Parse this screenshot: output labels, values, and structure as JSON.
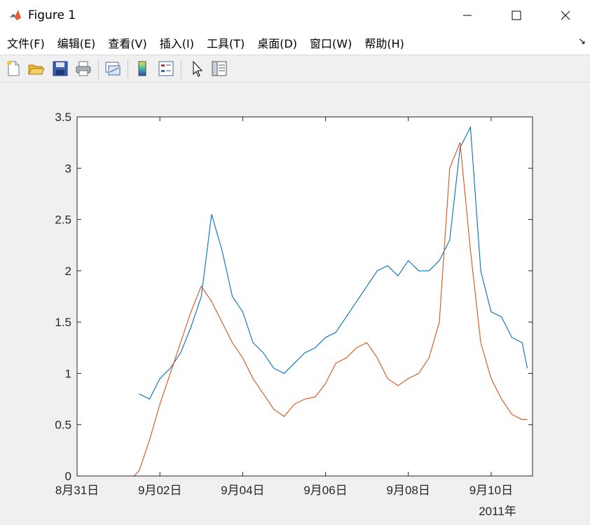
{
  "window": {
    "title": "Figure 1"
  },
  "menu": {
    "items": [
      "文件(F)",
      "编辑(E)",
      "查看(V)",
      "插入(I)",
      "工具(T)",
      "桌面(D)",
      "窗口(W)",
      "帮助(H)"
    ]
  },
  "toolbar": {
    "icons": [
      "new-figure-icon",
      "open-file-icon",
      "save-icon",
      "print-icon",
      "link-plot-icon",
      "colorbar-icon",
      "legend-icon",
      "edit-plot-arrow-icon",
      "property-inspector-icon"
    ]
  },
  "colors": {
    "series1": "#0072bd",
    "series2": "#d95319",
    "axis": "#262626"
  },
  "chart_data": {
    "type": "line",
    "title": "",
    "xlabel": "",
    "ylabel": "",
    "xlim": [
      "2011-08-31",
      "2011-09-11"
    ],
    "ylim": [
      0,
      3.5
    ],
    "x_ticks": [
      "8月31日",
      "9月02日",
      "9月04日",
      "9月06日",
      "9月08日",
      "9月10日"
    ],
    "x_secondary_label": "2011年",
    "y_ticks": [
      "0",
      "0.5",
      "1",
      "1.5",
      "2",
      "2.5",
      "3",
      "3.5"
    ],
    "grid": false,
    "series": [
      {
        "color": "#0072bd",
        "x": [
          "09-01 12:00",
          "09-01 18:00",
          "09-02 00:00",
          "09-02 06:00",
          "09-02 12:00",
          "09-02 18:00",
          "09-03 00:00",
          "09-03 06:00",
          "09-03 12:00",
          "09-03 18:00",
          "09-04 00:00",
          "09-04 06:00",
          "09-04 12:00",
          "09-04 18:00",
          "09-05 00:00",
          "09-05 06:00",
          "09-05 12:00",
          "09-05 18:00",
          "09-06 00:00",
          "09-06 06:00",
          "09-06 12:00",
          "09-06 18:00",
          "09-07 00:00",
          "09-07 06:00",
          "09-07 12:00",
          "09-07 18:00",
          "09-08 00:00",
          "09-08 06:00",
          "09-08 12:00",
          "09-08 18:00",
          "09-09 00:00",
          "09-09 06:00",
          "09-09 12:00",
          "09-09 18:00",
          "09-10 00:00",
          "09-10 06:00",
          "09-10 12:00",
          "09-10 18:00",
          "09-10 21:00"
        ],
        "y": [
          0.8,
          0.75,
          0.95,
          1.05,
          1.2,
          1.45,
          1.75,
          2.55,
          2.2,
          1.75,
          1.6,
          1.3,
          1.2,
          1.05,
          1.0,
          1.1,
          1.2,
          1.25,
          1.35,
          1.4,
          1.55,
          1.7,
          1.85,
          2.0,
          2.05,
          1.95,
          2.1,
          2.0,
          2.0,
          2.1,
          2.3,
          3.2,
          3.4,
          2.0,
          1.6,
          1.55,
          1.35,
          1.3,
          1.05
        ]
      },
      {
        "color": "#d95319",
        "x": [
          "09-01 09:00",
          "09-01 12:00",
          "09-01 18:00",
          "09-02 00:00",
          "09-02 06:00",
          "09-02 12:00",
          "09-02 18:00",
          "09-03 00:00",
          "09-03 06:00",
          "09-03 12:00",
          "09-03 18:00",
          "09-04 00:00",
          "09-04 06:00",
          "09-04 12:00",
          "09-04 18:00",
          "09-05 00:00",
          "09-05 06:00",
          "09-05 12:00",
          "09-05 18:00",
          "09-06 00:00",
          "09-06 06:00",
          "09-06 12:00",
          "09-06 18:00",
          "09-07 00:00",
          "09-07 06:00",
          "09-07 12:00",
          "09-07 18:00",
          "09-08 00:00",
          "09-08 06:00",
          "09-08 12:00",
          "09-08 18:00",
          "09-09 00:00",
          "09-09 06:00",
          "09-09 12:00",
          "09-09 18:00",
          "09-10 00:00",
          "09-10 06:00",
          "09-10 12:00",
          "09-10 18:00",
          "09-10 21:00"
        ],
        "y": [
          0.0,
          0.05,
          0.35,
          0.7,
          1.0,
          1.3,
          1.6,
          1.85,
          1.7,
          1.5,
          1.3,
          1.15,
          0.95,
          0.8,
          0.65,
          0.58,
          0.7,
          0.75,
          0.77,
          0.9,
          1.1,
          1.15,
          1.25,
          1.3,
          1.15,
          0.95,
          0.88,
          0.95,
          1.0,
          1.15,
          1.5,
          3.0,
          3.25,
          2.2,
          1.3,
          0.95,
          0.75,
          0.6,
          0.55,
          0.55
        ]
      }
    ]
  }
}
